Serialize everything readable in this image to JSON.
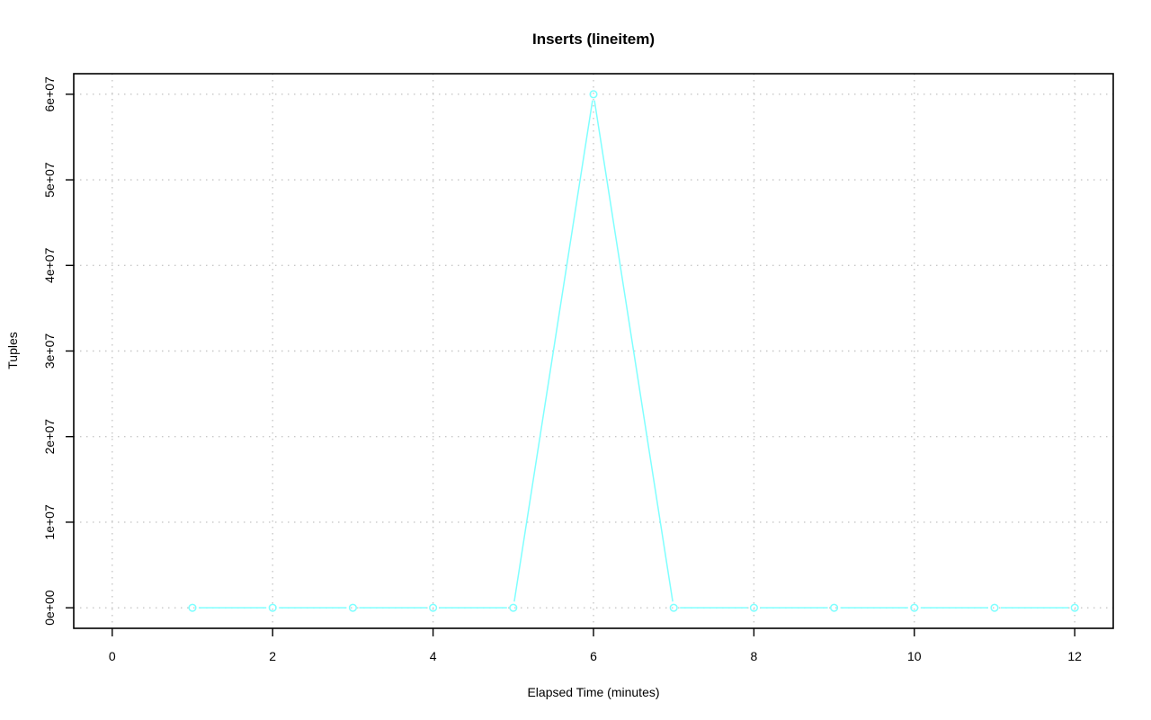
{
  "chart_data": {
    "type": "line",
    "title": "Inserts (lineitem)",
    "xlabel": "Elapsed Time (minutes)",
    "ylabel": "Tuples",
    "xlim": [
      -0.48,
      12.48
    ],
    "ylim": [
      -2400000,
      62400000
    ],
    "x_ticks": [
      0,
      2,
      4,
      6,
      8,
      10,
      12
    ],
    "x_tick_labels": [
      "0",
      "2",
      "4",
      "6",
      "8",
      "10",
      "12"
    ],
    "y_ticks": [
      0,
      10000000,
      20000000,
      30000000,
      40000000,
      50000000,
      60000000
    ],
    "y_tick_labels": [
      "0e+00",
      "1e+07",
      "2e+07",
      "3e+07",
      "4e+07",
      "5e+07",
      "6e+07"
    ],
    "grid": true,
    "series": [
      {
        "color": "#7fffff",
        "marker": "open-circle",
        "x": [
          1,
          2,
          3,
          4,
          5,
          6,
          7,
          8,
          9,
          10,
          11,
          12
        ],
        "y": [
          0,
          0,
          0,
          0,
          0,
          60000000,
          0,
          0,
          0,
          0,
          0,
          0
        ]
      }
    ]
  }
}
